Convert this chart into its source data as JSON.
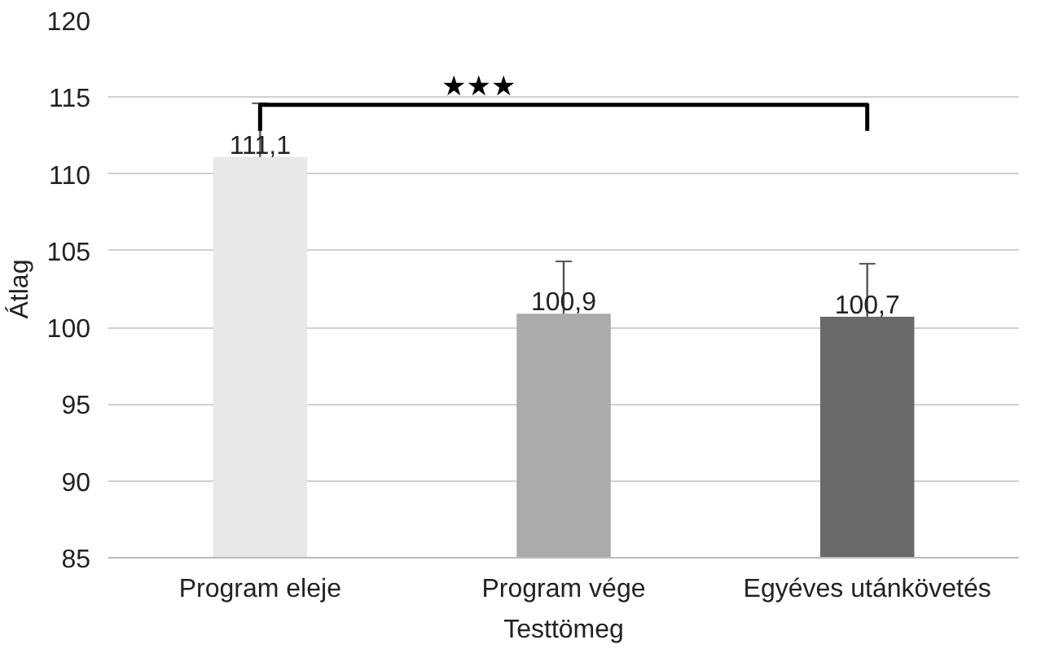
{
  "chart_data": {
    "type": "bar",
    "categories": [
      "Program eleje",
      "Program vége",
      "Egyéves utánkövetés"
    ],
    "values": [
      111.1,
      100.9,
      100.7
    ],
    "colors": [
      "#e8e8e8",
      "#ababab",
      "#6a6a6a"
    ],
    "errors": [
      3.5,
      3.4,
      3.45
    ],
    "value_labels": [
      "111,1",
      "100,9",
      "100,7"
    ],
    "xlabel": "Testtömeg",
    "ylabel": "Átlag",
    "ylim": [
      85,
      120
    ],
    "yticks": [
      85,
      90,
      95,
      100,
      105,
      110,
      115,
      120
    ],
    "grid": "y",
    "annotations": [
      "★★★"
    ]
  }
}
